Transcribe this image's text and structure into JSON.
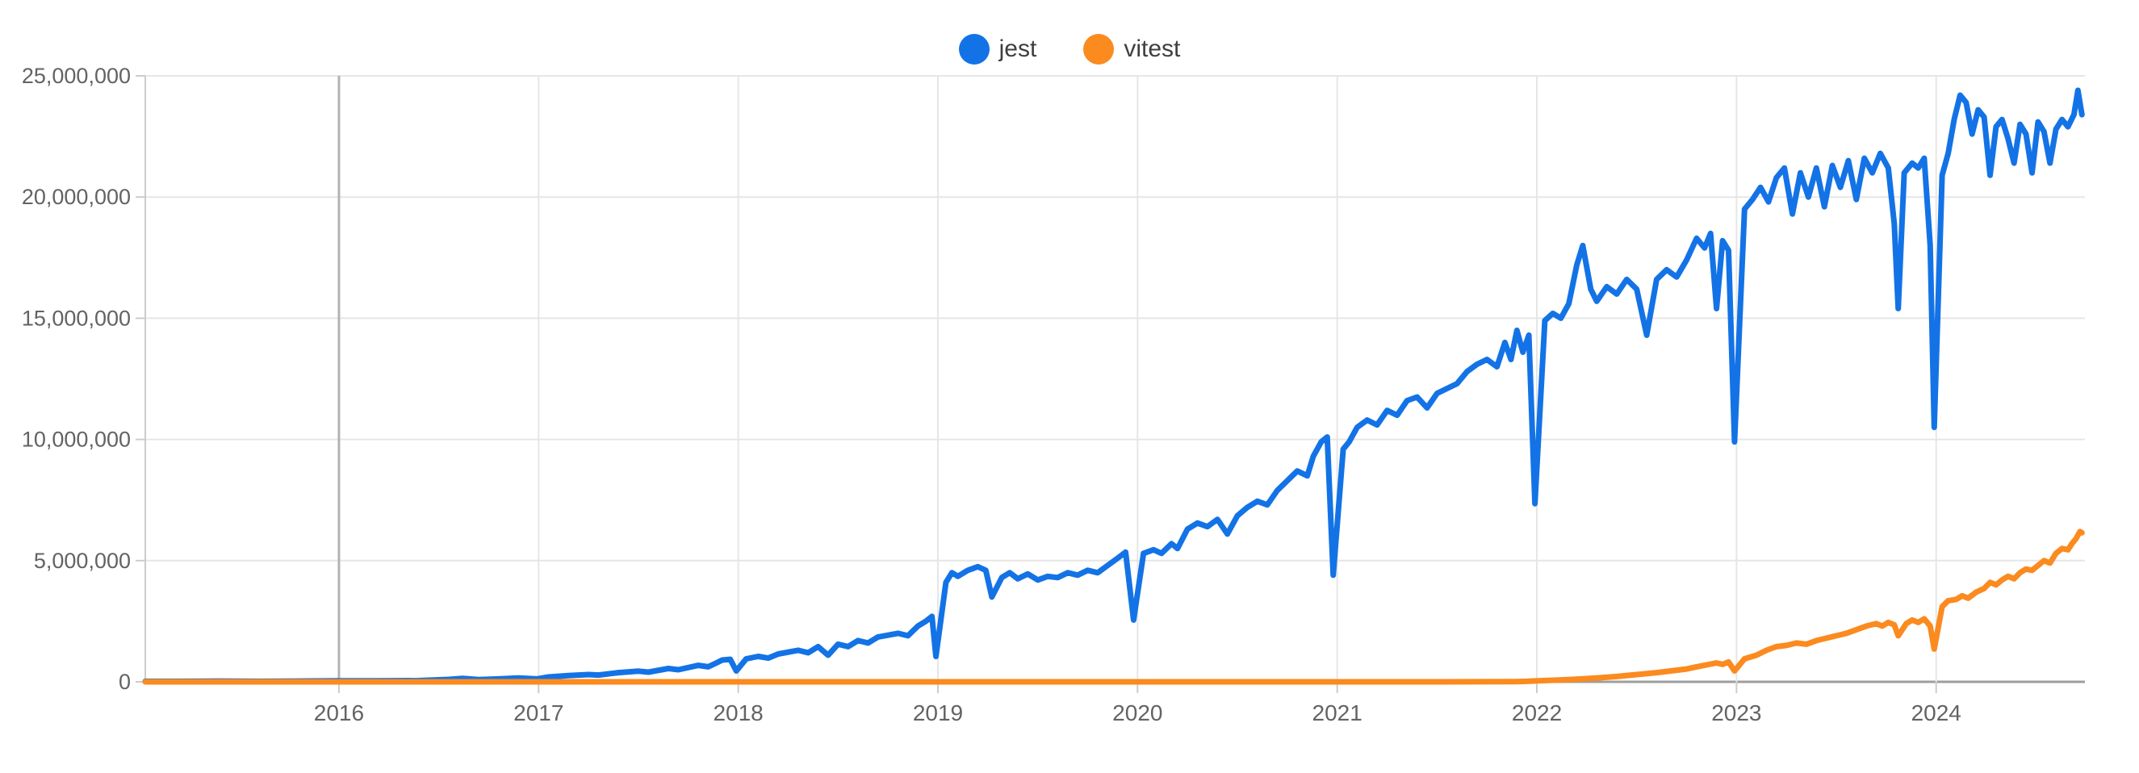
{
  "chart_data": {
    "type": "line",
    "title": "",
    "xlabel": "",
    "ylabel": "",
    "values_unit": "weekly_downloads_millions",
    "x_range": [
      2015.03,
      2024.745
    ],
    "ylim_millions": [
      0,
      25
    ],
    "grid": true,
    "legend_position": "top-center",
    "x_ticks": [
      {
        "year": 2016,
        "label": "2016"
      },
      {
        "year": 2017,
        "label": "2017"
      },
      {
        "year": 2018,
        "label": "2018"
      },
      {
        "year": 2019,
        "label": "2019"
      },
      {
        "year": 2020,
        "label": "2020"
      },
      {
        "year": 2021,
        "label": "2021"
      },
      {
        "year": 2022,
        "label": "2022"
      },
      {
        "year": 2023,
        "label": "2023"
      },
      {
        "year": 2024,
        "label": "2024"
      }
    ],
    "y_ticks": [
      {
        "value_millions": 0,
        "label": "0"
      },
      {
        "value_millions": 5,
        "label": "5,000,000"
      },
      {
        "value_millions": 10,
        "label": "10,000,000"
      },
      {
        "value_millions": 15,
        "label": "15,000,000"
      },
      {
        "value_millions": 20,
        "label": "20,000,000"
      },
      {
        "value_millions": 25,
        "label": "25,000,000"
      }
    ],
    "emphasized_x_gridline_year": 2016,
    "colors": {
      "grid": "#e6e6e6",
      "axis_line": "#9e9e9e",
      "left_edge_line": "#cccccc",
      "emphasized_gridline": "#b3b3b3",
      "tick_mark": "#cccccc",
      "axis_label_text": "#636363",
      "legend_text": "#3f3f3f"
    },
    "series": [
      {
        "name": "jest",
        "color": "#1373e6",
        "points": [
          [
            2015.03,
            0.02
          ],
          [
            2015.2,
            0.02
          ],
          [
            2015.4,
            0.03
          ],
          [
            2015.6,
            0.02
          ],
          [
            2015.8,
            0.03
          ],
          [
            2016.0,
            0.04
          ],
          [
            2016.2,
            0.04
          ],
          [
            2016.4,
            0.05
          ],
          [
            2016.55,
            0.1
          ],
          [
            2016.62,
            0.14
          ],
          [
            2016.7,
            0.09
          ],
          [
            2016.8,
            0.12
          ],
          [
            2016.9,
            0.16
          ],
          [
            2016.99,
            0.12
          ],
          [
            2017.05,
            0.2
          ],
          [
            2017.15,
            0.26
          ],
          [
            2017.25,
            0.3
          ],
          [
            2017.3,
            0.28
          ],
          [
            2017.4,
            0.38
          ],
          [
            2017.5,
            0.44
          ],
          [
            2017.55,
            0.4
          ],
          [
            2017.65,
            0.55
          ],
          [
            2017.7,
            0.5
          ],
          [
            2017.8,
            0.68
          ],
          [
            2017.85,
            0.62
          ],
          [
            2017.92,
            0.9
          ],
          [
            2017.96,
            0.93
          ],
          [
            2017.99,
            0.45
          ],
          [
            2018.04,
            0.95
          ],
          [
            2018.1,
            1.05
          ],
          [
            2018.15,
            0.98
          ],
          [
            2018.2,
            1.15
          ],
          [
            2018.3,
            1.3
          ],
          [
            2018.35,
            1.2
          ],
          [
            2018.4,
            1.45
          ],
          [
            2018.45,
            1.1
          ],
          [
            2018.5,
            1.55
          ],
          [
            2018.55,
            1.45
          ],
          [
            2018.6,
            1.7
          ],
          [
            2018.65,
            1.6
          ],
          [
            2018.7,
            1.85
          ],
          [
            2018.8,
            2.0
          ],
          [
            2018.85,
            1.9
          ],
          [
            2018.9,
            2.3
          ],
          [
            2018.94,
            2.5
          ],
          [
            2018.97,
            2.7
          ],
          [
            2018.99,
            1.05
          ],
          [
            2019.04,
            4.1
          ],
          [
            2019.07,
            4.5
          ],
          [
            2019.1,
            4.35
          ],
          [
            2019.15,
            4.6
          ],
          [
            2019.2,
            4.75
          ],
          [
            2019.24,
            4.6
          ],
          [
            2019.27,
            3.5
          ],
          [
            2019.32,
            4.3
          ],
          [
            2019.36,
            4.5
          ],
          [
            2019.4,
            4.25
          ],
          [
            2019.45,
            4.45
          ],
          [
            2019.5,
            4.2
          ],
          [
            2019.55,
            4.35
          ],
          [
            2019.6,
            4.3
          ],
          [
            2019.65,
            4.5
          ],
          [
            2019.7,
            4.4
          ],
          [
            2019.75,
            4.6
          ],
          [
            2019.8,
            4.5
          ],
          [
            2019.85,
            4.8
          ],
          [
            2019.9,
            5.1
          ],
          [
            2019.94,
            5.35
          ],
          [
            2019.98,
            2.55
          ],
          [
            2020.03,
            5.3
          ],
          [
            2020.08,
            5.45
          ],
          [
            2020.12,
            5.3
          ],
          [
            2020.17,
            5.7
          ],
          [
            2020.2,
            5.5
          ],
          [
            2020.25,
            6.3
          ],
          [
            2020.3,
            6.55
          ],
          [
            2020.35,
            6.4
          ],
          [
            2020.4,
            6.7
          ],
          [
            2020.45,
            6.1
          ],
          [
            2020.5,
            6.85
          ],
          [
            2020.55,
            7.2
          ],
          [
            2020.6,
            7.45
          ],
          [
            2020.65,
            7.3
          ],
          [
            2020.7,
            7.9
          ],
          [
            2020.75,
            8.3
          ],
          [
            2020.8,
            8.7
          ],
          [
            2020.85,
            8.5
          ],
          [
            2020.88,
            9.3
          ],
          [
            2020.92,
            9.9
          ],
          [
            2020.95,
            10.1
          ],
          [
            2020.98,
            4.4
          ],
          [
            2021.03,
            9.6
          ],
          [
            2021.06,
            9.9
          ],
          [
            2021.1,
            10.5
          ],
          [
            2021.15,
            10.8
          ],
          [
            2021.2,
            10.6
          ],
          [
            2021.25,
            11.2
          ],
          [
            2021.3,
            11.0
          ],
          [
            2021.35,
            11.6
          ],
          [
            2021.4,
            11.75
          ],
          [
            2021.45,
            11.3
          ],
          [
            2021.5,
            11.9
          ],
          [
            2021.55,
            12.1
          ],
          [
            2021.6,
            12.3
          ],
          [
            2021.65,
            12.8
          ],
          [
            2021.7,
            13.1
          ],
          [
            2021.75,
            13.3
          ],
          [
            2021.8,
            13.0
          ],
          [
            2021.84,
            14.0
          ],
          [
            2021.87,
            13.3
          ],
          [
            2021.9,
            14.5
          ],
          [
            2021.93,
            13.6
          ],
          [
            2021.96,
            14.3
          ],
          [
            2021.99,
            7.35
          ],
          [
            2022.04,
            14.9
          ],
          [
            2022.08,
            15.2
          ],
          [
            2022.12,
            15.0
          ],
          [
            2022.16,
            15.6
          ],
          [
            2022.2,
            17.2
          ],
          [
            2022.23,
            18.0
          ],
          [
            2022.27,
            16.2
          ],
          [
            2022.3,
            15.7
          ],
          [
            2022.35,
            16.3
          ],
          [
            2022.4,
            16.0
          ],
          [
            2022.45,
            16.6
          ],
          [
            2022.5,
            16.2
          ],
          [
            2022.55,
            14.3
          ],
          [
            2022.6,
            16.6
          ],
          [
            2022.65,
            17.0
          ],
          [
            2022.7,
            16.7
          ],
          [
            2022.75,
            17.4
          ],
          [
            2022.8,
            18.3
          ],
          [
            2022.84,
            17.9
          ],
          [
            2022.87,
            18.5
          ],
          [
            2022.9,
            15.4
          ],
          [
            2022.93,
            18.2
          ],
          [
            2022.96,
            17.8
          ],
          [
            2022.99,
            9.9
          ],
          [
            2023.04,
            19.5
          ],
          [
            2023.08,
            19.9
          ],
          [
            2023.12,
            20.4
          ],
          [
            2023.16,
            19.8
          ],
          [
            2023.2,
            20.8
          ],
          [
            2023.24,
            21.2
          ],
          [
            2023.28,
            19.3
          ],
          [
            2023.32,
            21.0
          ],
          [
            2023.36,
            20.0
          ],
          [
            2023.4,
            21.2
          ],
          [
            2023.44,
            19.6
          ],
          [
            2023.48,
            21.3
          ],
          [
            2023.52,
            20.4
          ],
          [
            2023.56,
            21.5
          ],
          [
            2023.6,
            19.9
          ],
          [
            2023.64,
            21.6
          ],
          [
            2023.68,
            21.0
          ],
          [
            2023.72,
            21.8
          ],
          [
            2023.76,
            21.2
          ],
          [
            2023.79,
            18.9
          ],
          [
            2023.81,
            15.4
          ],
          [
            2023.84,
            21.0
          ],
          [
            2023.88,
            21.4
          ],
          [
            2023.91,
            21.2
          ],
          [
            2023.94,
            21.6
          ],
          [
            2023.97,
            18.0
          ],
          [
            2023.99,
            10.5
          ],
          [
            2024.03,
            20.9
          ],
          [
            2024.06,
            21.8
          ],
          [
            2024.09,
            23.2
          ],
          [
            2024.12,
            24.2
          ],
          [
            2024.15,
            23.9
          ],
          [
            2024.18,
            22.6
          ],
          [
            2024.21,
            23.6
          ],
          [
            2024.24,
            23.3
          ],
          [
            2024.27,
            20.9
          ],
          [
            2024.3,
            22.9
          ],
          [
            2024.33,
            23.2
          ],
          [
            2024.36,
            22.4
          ],
          [
            2024.39,
            21.4
          ],
          [
            2024.42,
            23.0
          ],
          [
            2024.45,
            22.6
          ],
          [
            2024.48,
            21.0
          ],
          [
            2024.51,
            23.1
          ],
          [
            2024.54,
            22.7
          ],
          [
            2024.57,
            21.4
          ],
          [
            2024.6,
            22.8
          ],
          [
            2024.63,
            23.2
          ],
          [
            2024.66,
            22.9
          ],
          [
            2024.69,
            23.4
          ],
          [
            2024.71,
            24.4
          ],
          [
            2024.73,
            23.4
          ]
        ]
      },
      {
        "name": "vitest",
        "color": "#fb8a1f",
        "points": [
          [
            2015.03,
            0.0
          ],
          [
            2016.0,
            0.0
          ],
          [
            2017.0,
            0.0
          ],
          [
            2018.0,
            0.0
          ],
          [
            2019.0,
            0.0
          ],
          [
            2020.0,
            0.0
          ],
          [
            2021.0,
            0.0
          ],
          [
            2021.5,
            0.0
          ],
          [
            2021.9,
            0.01
          ],
          [
            2021.95,
            0.02
          ],
          [
            2022.0,
            0.04
          ],
          [
            2022.1,
            0.07
          ],
          [
            2022.2,
            0.11
          ],
          [
            2022.3,
            0.16
          ],
          [
            2022.4,
            0.22
          ],
          [
            2022.5,
            0.3
          ],
          [
            2022.6,
            0.38
          ],
          [
            2022.7,
            0.48
          ],
          [
            2022.75,
            0.53
          ],
          [
            2022.8,
            0.62
          ],
          [
            2022.85,
            0.7
          ],
          [
            2022.9,
            0.78
          ],
          [
            2022.93,
            0.72
          ],
          [
            2022.96,
            0.82
          ],
          [
            2022.99,
            0.45
          ],
          [
            2023.04,
            0.95
          ],
          [
            2023.1,
            1.1
          ],
          [
            2023.15,
            1.3
          ],
          [
            2023.2,
            1.45
          ],
          [
            2023.25,
            1.5
          ],
          [
            2023.3,
            1.6
          ],
          [
            2023.35,
            1.55
          ],
          [
            2023.4,
            1.7
          ],
          [
            2023.45,
            1.8
          ],
          [
            2023.5,
            1.9
          ],
          [
            2023.55,
            2.0
          ],
          [
            2023.6,
            2.15
          ],
          [
            2023.65,
            2.3
          ],
          [
            2023.7,
            2.4
          ],
          [
            2023.73,
            2.3
          ],
          [
            2023.76,
            2.45
          ],
          [
            2023.79,
            2.35
          ],
          [
            2023.81,
            1.9
          ],
          [
            2023.85,
            2.4
          ],
          [
            2023.88,
            2.55
          ],
          [
            2023.91,
            2.45
          ],
          [
            2023.94,
            2.6
          ],
          [
            2023.97,
            2.3
          ],
          [
            2023.99,
            1.35
          ],
          [
            2024.03,
            3.1
          ],
          [
            2024.06,
            3.35
          ],
          [
            2024.1,
            3.4
          ],
          [
            2024.13,
            3.55
          ],
          [
            2024.16,
            3.45
          ],
          [
            2024.2,
            3.7
          ],
          [
            2024.24,
            3.85
          ],
          [
            2024.27,
            4.1
          ],
          [
            2024.3,
            4.0
          ],
          [
            2024.33,
            4.2
          ],
          [
            2024.36,
            4.35
          ],
          [
            2024.39,
            4.25
          ],
          [
            2024.42,
            4.5
          ],
          [
            2024.45,
            4.65
          ],
          [
            2024.48,
            4.6
          ],
          [
            2024.51,
            4.8
          ],
          [
            2024.54,
            5.0
          ],
          [
            2024.57,
            4.9
          ],
          [
            2024.6,
            5.3
          ],
          [
            2024.63,
            5.5
          ],
          [
            2024.66,
            5.45
          ],
          [
            2024.68,
            5.7
          ],
          [
            2024.7,
            5.9
          ],
          [
            2024.72,
            6.2
          ],
          [
            2024.73,
            6.15
          ]
        ]
      }
    ]
  },
  "legend": {
    "items": [
      {
        "label": "jest"
      },
      {
        "label": "vitest"
      }
    ]
  }
}
